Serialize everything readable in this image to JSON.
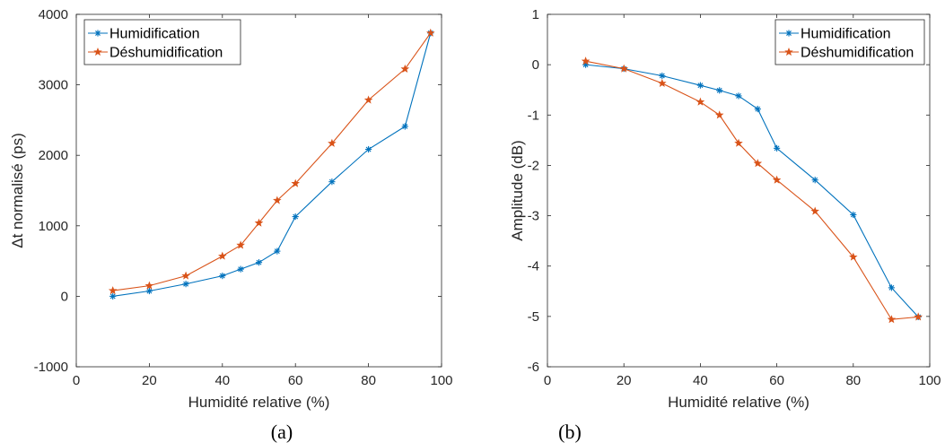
{
  "colors": {
    "humidification": "#0072BD",
    "deshumidification": "#D95319",
    "axis": "#262626"
  },
  "chart_data": [
    {
      "type": "line",
      "panel_label": "(a)",
      "xlabel": "Humidité relative (%)",
      "ylabel": "Δt normalisé (ps)",
      "xlim": [
        0,
        100
      ],
      "ylim": [
        -1000,
        4000
      ],
      "xticks": [
        0,
        20,
        40,
        60,
        80,
        100
      ],
      "yticks": [
        -1000,
        0,
        1000,
        2000,
        3000,
        4000
      ],
      "grid": false,
      "legend_position": "top-left",
      "series": [
        {
          "name": "Humidification",
          "marker": "asterisk",
          "x": [
            10,
            20,
            30,
            40,
            45,
            50,
            55,
            60,
            70,
            80,
            90,
            97
          ],
          "y": [
            0,
            75,
            175,
            290,
            385,
            480,
            640,
            1130,
            1625,
            2085,
            2410,
            3735
          ]
        },
        {
          "name": "Déshumidification",
          "marker": "star",
          "x": [
            10,
            20,
            30,
            40,
            45,
            50,
            55,
            60,
            70,
            80,
            90,
            97
          ],
          "y": [
            80,
            150,
            290,
            570,
            725,
            1040,
            1360,
            1600,
            2170,
            2785,
            3225,
            3735
          ]
        }
      ]
    },
    {
      "type": "line",
      "panel_label": "(b)",
      "xlabel": "Humidité relative (%)",
      "ylabel": "Amplitude (dB)",
      "xlim": [
        0,
        100
      ],
      "ylim": [
        -6,
        1
      ],
      "xticks": [
        0,
        20,
        40,
        60,
        80,
        100
      ],
      "yticks": [
        -6,
        -5,
        -4,
        -3,
        -2,
        -1,
        0,
        1
      ],
      "grid": false,
      "legend_position": "top-right",
      "series": [
        {
          "name": "Humidification",
          "marker": "asterisk",
          "x": [
            10,
            20,
            30,
            40,
            45,
            50,
            55,
            60,
            70,
            80,
            90,
            97
          ],
          "y": [
            0,
            -0.08,
            -0.22,
            -0.41,
            -0.51,
            -0.62,
            -0.88,
            -1.66,
            -2.29,
            -2.98,
            -4.43,
            -5.01
          ]
        },
        {
          "name": "Déshumidification",
          "marker": "star",
          "x": [
            10,
            20,
            30,
            40,
            45,
            50,
            55,
            60,
            70,
            80,
            90,
            97
          ],
          "y": [
            0.07,
            -0.08,
            -0.37,
            -0.74,
            -1.0,
            -1.56,
            -1.96,
            -2.29,
            -2.91,
            -3.82,
            -5.06,
            -5.01
          ]
        }
      ]
    }
  ]
}
